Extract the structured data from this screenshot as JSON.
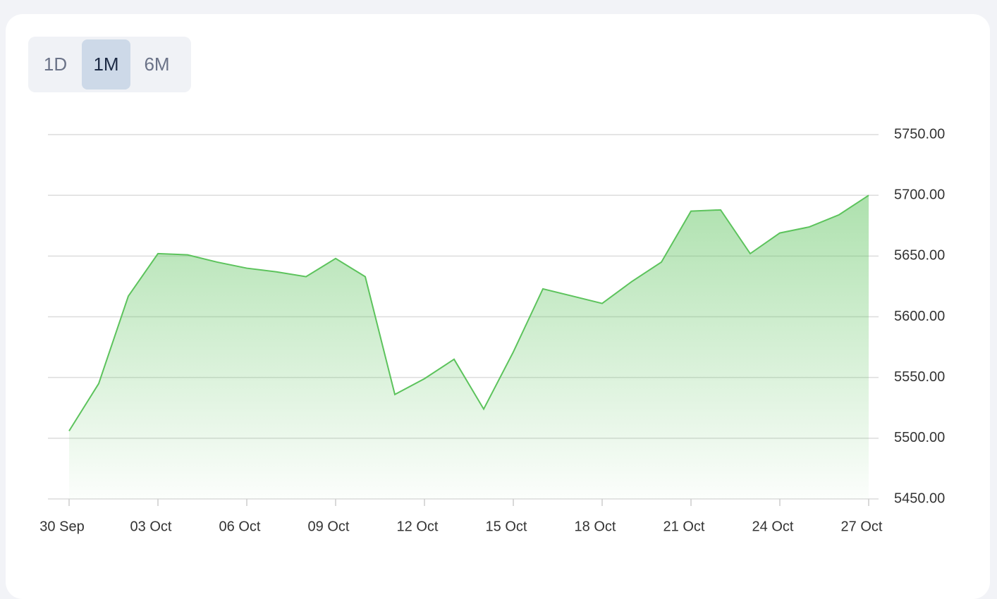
{
  "controls": {
    "buttons": [
      "1D",
      "1M",
      "6M"
    ],
    "selected": 1
  },
  "chart_data": {
    "type": "area",
    "categories": [
      "30 Sep",
      null,
      null,
      "03 Oct",
      null,
      null,
      "06 Oct",
      null,
      null,
      "09 Oct",
      null,
      null,
      "12 Oct",
      null,
      null,
      "15 Oct",
      null,
      null,
      "18 Oct",
      null,
      null,
      "21 Oct",
      null,
      null,
      "24 Oct",
      null,
      null,
      "27 Oct"
    ],
    "values": [
      5506,
      5545,
      5617,
      5652,
      5651,
      5645,
      5640,
      5637,
      5633,
      5648,
      5633,
      5536,
      5549,
      5565,
      5524,
      5571,
      5623,
      5617,
      5611,
      5629,
      5645,
      5687,
      5688,
      5652,
      5669,
      5674,
      5684,
      5700
    ],
    "color": "#5cc35c",
    "ylim": [
      5450,
      5750
    ],
    "yticks": [
      {
        "value": 5450,
        "label": "5450.00"
      },
      {
        "value": 5500,
        "label": "5500.00"
      },
      {
        "value": 5550,
        "label": "5550.00"
      },
      {
        "value": 5600,
        "label": "5600.00"
      },
      {
        "value": 5650,
        "label": "5650.00"
      },
      {
        "value": 5700,
        "label": "5700.00"
      },
      {
        "value": 5750,
        "label": "5750.00"
      }
    ],
    "grid": true
  }
}
